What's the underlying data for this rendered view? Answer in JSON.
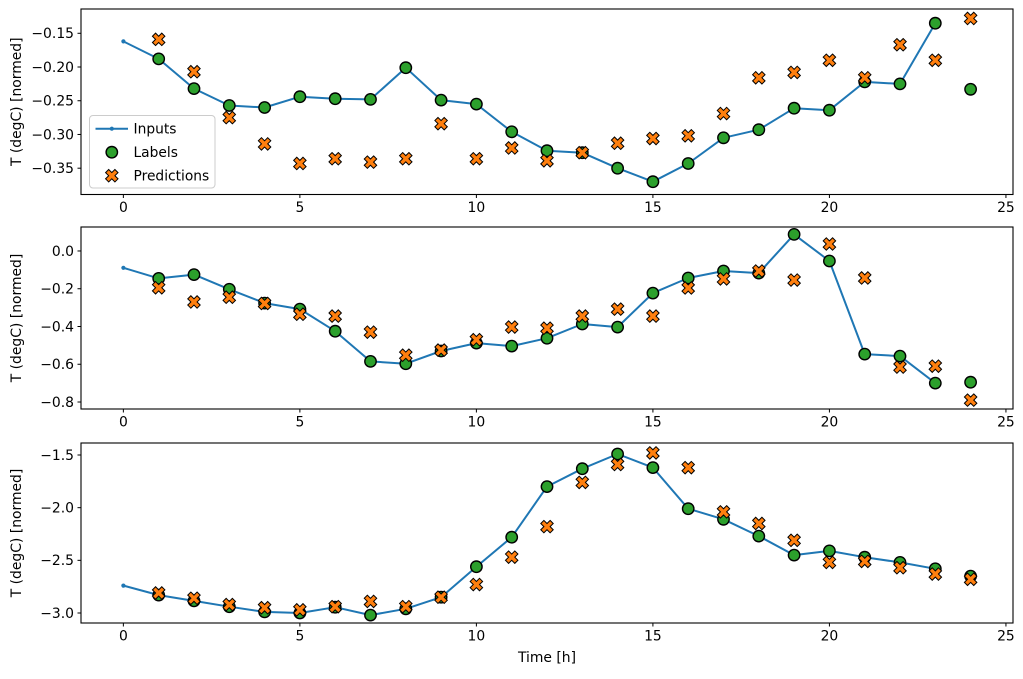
{
  "figure": {
    "xlabel": "Time [h]",
    "ylabel": "T (degC) [normed]",
    "legend": {
      "position": "center-left-of-first-subplot",
      "items": [
        {
          "label": "Inputs",
          "marker": "line-dot",
          "color": "#1f77b4"
        },
        {
          "label": "Labels",
          "marker": "circle",
          "color": "#2ca02c"
        },
        {
          "label": "Predictions",
          "marker": "x",
          "color": "#ff7f0e"
        }
      ]
    },
    "colors": {
      "inputs": "#1f77b4",
      "labels": "#2ca02c",
      "predictions": "#ff7f0e",
      "marker_edge": "#000000",
      "axis": "#000000",
      "legend_border": "#cccccc",
      "background": "#ffffff"
    }
  },
  "chart_data": [
    {
      "type": "line+scatter",
      "title": "",
      "xlabel": "",
      "ylabel": "T (degC) [normed]",
      "legend": true,
      "grid": false,
      "xlim": [
        -1.2,
        25.2
      ],
      "ylim": [
        -0.389,
        -0.114
      ],
      "xticks": [
        0,
        5,
        10,
        15,
        20,
        25
      ],
      "xticklabels": [
        "0",
        "5",
        "10",
        "15",
        "20",
        "25"
      ],
      "yticks": [
        -0.15,
        -0.2,
        -0.25,
        -0.3,
        -0.35
      ],
      "yticklabels": [
        "−0.15",
        "−0.20",
        "−0.25",
        "−0.30",
        "−0.35"
      ],
      "series": [
        {
          "name": "Inputs",
          "type": "line",
          "marker": "dot",
          "color": "#1f77b4",
          "x": [
            0,
            1,
            2,
            3,
            4,
            5,
            6,
            7,
            8,
            9,
            10,
            11,
            12,
            13,
            14,
            15,
            16,
            17,
            18,
            19,
            20,
            21,
            22,
            23
          ],
          "y": [
            -0.162,
            -0.188,
            -0.232,
            -0.257,
            -0.26,
            -0.244,
            -0.247,
            -0.248,
            -0.201,
            -0.249,
            -0.255,
            -0.296,
            -0.324,
            -0.327,
            -0.35,
            -0.37,
            -0.343,
            -0.305,
            -0.293,
            -0.261,
            -0.264,
            -0.222,
            -0.225,
            -0.135
          ]
        },
        {
          "name": "Labels",
          "type": "scatter",
          "marker": "circle",
          "color": "#2ca02c",
          "x": [
            1,
            2,
            3,
            4,
            5,
            6,
            7,
            8,
            9,
            10,
            11,
            12,
            13,
            14,
            15,
            16,
            17,
            18,
            19,
            20,
            21,
            22,
            23,
            24
          ],
          "y": [
            -0.188,
            -0.232,
            -0.257,
            -0.26,
            -0.244,
            -0.247,
            -0.248,
            -0.201,
            -0.249,
            -0.255,
            -0.296,
            -0.324,
            -0.327,
            -0.35,
            -0.37,
            -0.343,
            -0.305,
            -0.293,
            -0.261,
            -0.264,
            -0.222,
            -0.225,
            -0.135,
            -0.233
          ]
        },
        {
          "name": "Predictions",
          "type": "scatter",
          "marker": "X",
          "color": "#ff7f0e",
          "x": [
            1,
            2,
            3,
            4,
            5,
            6,
            7,
            8,
            9,
            10,
            11,
            12,
            13,
            14,
            15,
            16,
            17,
            18,
            19,
            20,
            21,
            22,
            23,
            24
          ],
          "y": [
            -0.159,
            -0.207,
            -0.275,
            -0.314,
            -0.343,
            -0.336,
            -0.341,
            -0.336,
            -0.284,
            -0.336,
            -0.32,
            -0.339,
            -0.327,
            -0.313,
            -0.306,
            -0.302,
            -0.269,
            -0.216,
            -0.208,
            -0.19,
            -0.216,
            -0.167,
            -0.19,
            -0.128
          ]
        }
      ]
    },
    {
      "type": "line+scatter",
      "title": "",
      "xlabel": "",
      "ylabel": "T (degC) [normed]",
      "legend": false,
      "grid": false,
      "xlim": [
        -1.2,
        25.2
      ],
      "ylim": [
        -0.837,
        0.127
      ],
      "xticks": [
        0,
        5,
        10,
        15,
        20,
        25
      ],
      "xticklabels": [
        "0",
        "5",
        "10",
        "15",
        "20",
        "25"
      ],
      "yticks": [
        0.0,
        -0.2,
        -0.4,
        -0.6,
        -0.8
      ],
      "yticklabels": [
        "0.0",
        "−0.2",
        "−0.4",
        "−0.6",
        "−0.8"
      ],
      "series": [
        {
          "name": "Inputs",
          "type": "line",
          "marker": "dot",
          "color": "#1f77b4",
          "x": [
            0,
            1,
            2,
            3,
            4,
            5,
            6,
            7,
            8,
            9,
            10,
            11,
            12,
            13,
            14,
            15,
            16,
            17,
            18,
            19,
            20,
            21,
            22,
            23
          ],
          "y": [
            -0.089,
            -0.145,
            -0.125,
            -0.203,
            -0.276,
            -0.308,
            -0.425,
            -0.585,
            -0.597,
            -0.53,
            -0.488,
            -0.504,
            -0.462,
            -0.387,
            -0.403,
            -0.223,
            -0.143,
            -0.106,
            -0.117,
            0.088,
            -0.053,
            -0.546,
            -0.557,
            -0.7
          ]
        },
        {
          "name": "Labels",
          "type": "scatter",
          "marker": "circle",
          "color": "#2ca02c",
          "x": [
            1,
            2,
            3,
            4,
            5,
            6,
            7,
            8,
            9,
            10,
            11,
            12,
            13,
            14,
            15,
            16,
            17,
            18,
            19,
            20,
            21,
            22,
            23,
            24
          ],
          "y": [
            -0.145,
            -0.125,
            -0.203,
            -0.276,
            -0.308,
            -0.425,
            -0.585,
            -0.597,
            -0.53,
            -0.488,
            -0.504,
            -0.462,
            -0.387,
            -0.403,
            -0.223,
            -0.143,
            -0.106,
            -0.117,
            0.088,
            -0.053,
            -0.546,
            -0.557,
            -0.7,
            -0.695
          ]
        },
        {
          "name": "Predictions",
          "type": "scatter",
          "marker": "X",
          "color": "#ff7f0e",
          "x": [
            1,
            2,
            3,
            4,
            5,
            6,
            7,
            8,
            9,
            10,
            11,
            12,
            13,
            14,
            15,
            16,
            17,
            18,
            19,
            20,
            21,
            22,
            23,
            24
          ],
          "y": [
            -0.195,
            -0.27,
            -0.245,
            -0.278,
            -0.335,
            -0.345,
            -0.43,
            -0.552,
            -0.525,
            -0.47,
            -0.403,
            -0.409,
            -0.345,
            -0.308,
            -0.345,
            -0.196,
            -0.148,
            -0.106,
            -0.154,
            0.037,
            -0.143,
            -0.615,
            -0.61,
            -0.79
          ]
        }
      ]
    },
    {
      "type": "line+scatter",
      "title": "",
      "xlabel": "Time [h]",
      "ylabel": "T (degC) [normed]",
      "legend": false,
      "grid": false,
      "xlim": [
        -1.2,
        25.2
      ],
      "ylim": [
        -3.095,
        -1.386
      ],
      "xticks": [
        0,
        5,
        10,
        15,
        20,
        25
      ],
      "xticklabels": [
        "0",
        "5",
        "10",
        "15",
        "20",
        "25"
      ],
      "yticks": [
        -1.5,
        -2.0,
        -2.5,
        -3.0
      ],
      "yticklabels": [
        "−1.5",
        "−2.0",
        "−2.5",
        "−3.0"
      ],
      "series": [
        {
          "name": "Inputs",
          "type": "line",
          "marker": "dot",
          "color": "#1f77b4",
          "x": [
            0,
            1,
            2,
            3,
            4,
            5,
            6,
            7,
            8,
            9,
            10,
            11,
            12,
            13,
            14,
            15,
            16,
            17,
            18,
            19,
            20,
            21,
            22,
            23
          ],
          "y": [
            -2.74,
            -2.83,
            -2.885,
            -2.94,
            -2.99,
            -3.0,
            -2.945,
            -3.02,
            -2.96,
            -2.85,
            -2.56,
            -2.28,
            -1.8,
            -1.63,
            -1.49,
            -1.62,
            -2.01,
            -2.11,
            -2.27,
            -2.45,
            -2.41,
            -2.47,
            -2.52,
            -2.58
          ]
        },
        {
          "name": "Labels",
          "type": "scatter",
          "marker": "circle",
          "color": "#2ca02c",
          "x": [
            1,
            2,
            3,
            4,
            5,
            6,
            7,
            8,
            9,
            10,
            11,
            12,
            13,
            14,
            15,
            16,
            17,
            18,
            19,
            20,
            21,
            22,
            23,
            24
          ],
          "y": [
            -2.83,
            -2.885,
            -2.94,
            -2.99,
            -3.0,
            -2.945,
            -3.02,
            -2.96,
            -2.85,
            -2.56,
            -2.28,
            -1.8,
            -1.63,
            -1.49,
            -1.62,
            -2.01,
            -2.11,
            -2.27,
            -2.45,
            -2.41,
            -2.47,
            -2.52,
            -2.58,
            -2.65
          ]
        },
        {
          "name": "Predictions",
          "type": "scatter",
          "marker": "X",
          "color": "#ff7f0e",
          "x": [
            1,
            2,
            3,
            4,
            5,
            6,
            7,
            8,
            9,
            10,
            11,
            12,
            13,
            14,
            15,
            16,
            17,
            18,
            19,
            20,
            21,
            22,
            23,
            24
          ],
          "y": [
            -2.81,
            -2.86,
            -2.92,
            -2.95,
            -2.97,
            -2.94,
            -2.89,
            -2.94,
            -2.85,
            -2.73,
            -2.47,
            -2.18,
            -1.76,
            -1.59,
            -1.48,
            -1.62,
            -2.04,
            -2.15,
            -2.31,
            -2.52,
            -2.51,
            -2.57,
            -2.63,
            -2.68
          ]
        }
      ]
    }
  ]
}
